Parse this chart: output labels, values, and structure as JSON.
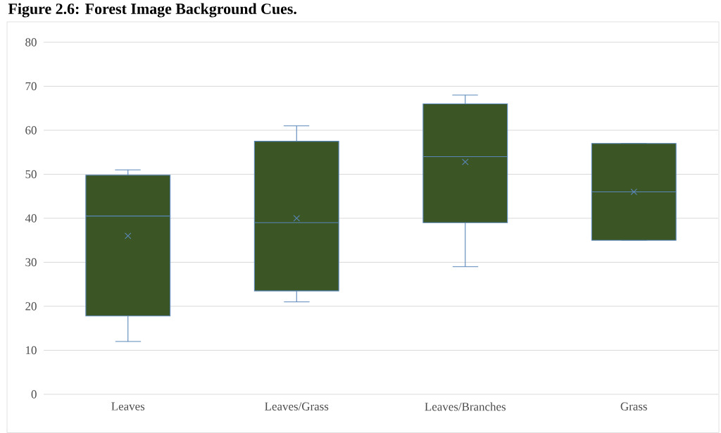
{
  "chart_data": {
    "type": "box",
    "title": "Figure 2.6: Forest Image Background Cues.",
    "categories": [
      "Leaves",
      "Leaves/Grass",
      "Leaves/Branches",
      "Grass"
    ],
    "series": [
      {
        "color": "#3b5524",
        "boxes": [
          {
            "low": 12,
            "q1": 17.8,
            "median": 40.5,
            "q3": 49.8,
            "high": 51,
            "mean": 36
          },
          {
            "low": 21,
            "q1": 23.5,
            "median": 39,
            "q3": 57.5,
            "high": 61,
            "mean": 40
          },
          {
            "low": 29,
            "q1": 39,
            "median": 54,
            "q3": 66,
            "high": 68,
            "mean": 52.8
          },
          {
            "low": 35,
            "q1": 35,
            "median": 46,
            "q3": 57,
            "high": 57,
            "mean": 46
          }
        ]
      }
    ],
    "ylim": [
      0,
      80
    ],
    "yticks": [
      0,
      10,
      20,
      30,
      40,
      50,
      60,
      70,
      80
    ],
    "grid": "y",
    "marker": "cross"
  }
}
